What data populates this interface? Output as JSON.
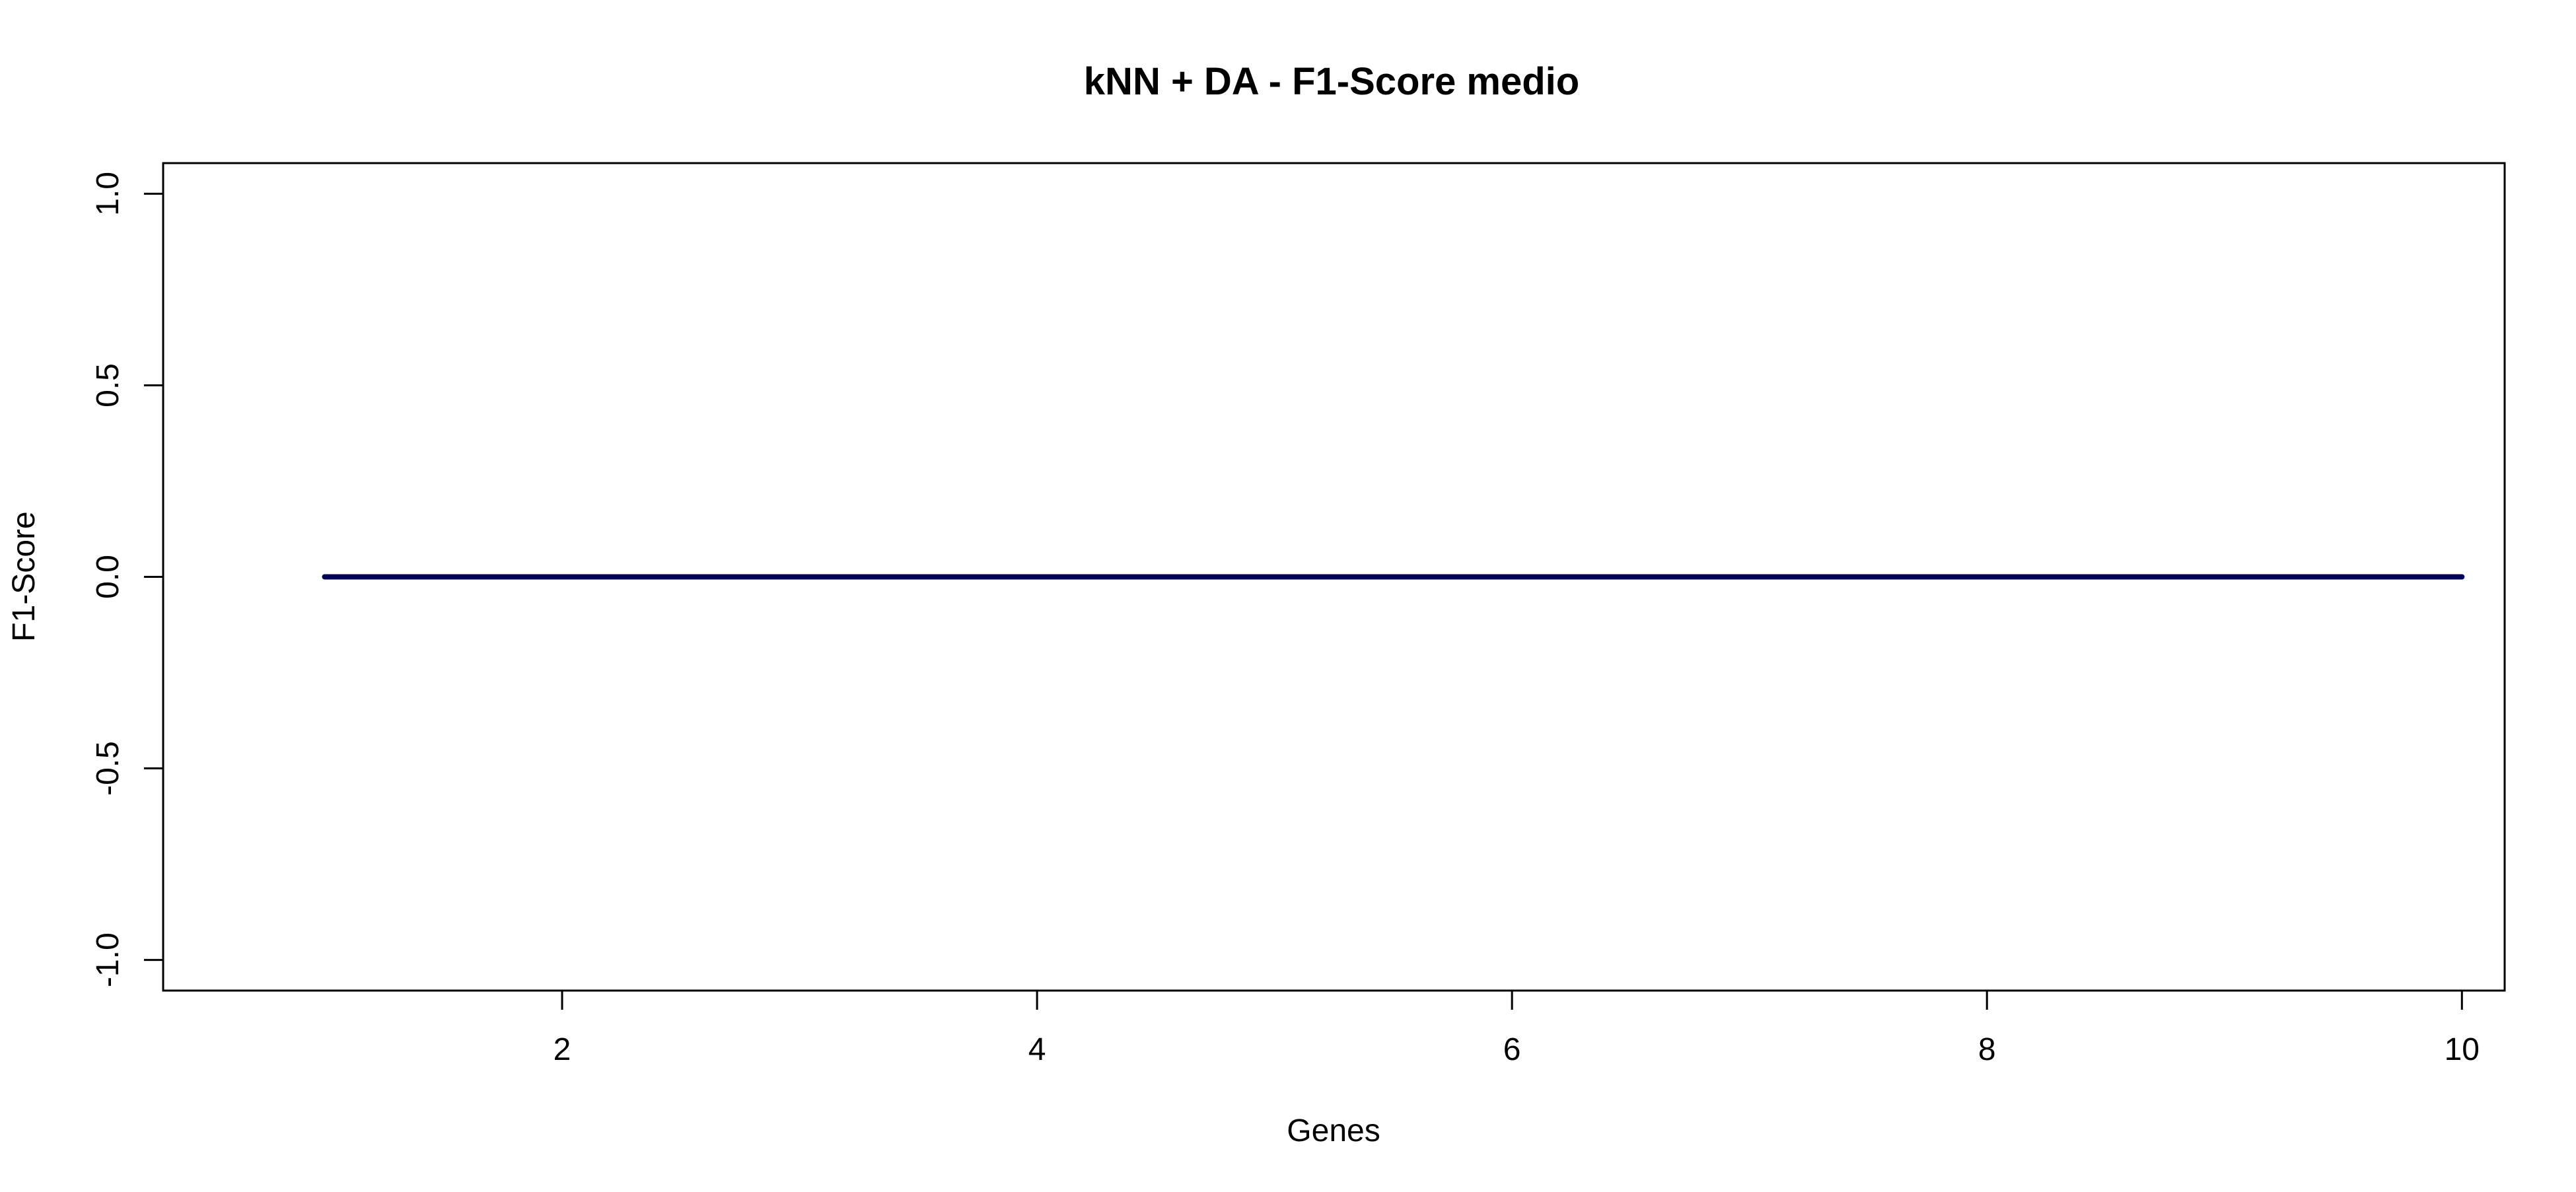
{
  "chart_data": {
    "type": "line",
    "title": "kNN + DA - F1-Score medio",
    "xlabel": "Genes",
    "ylabel": "F1-Score",
    "x": [
      1,
      2,
      3,
      4,
      5,
      6,
      7,
      8,
      9,
      10
    ],
    "series": [
      {
        "values": [
          0,
          0,
          0,
          0,
          0,
          0,
          0,
          0,
          0,
          0
        ],
        "color": "#00005a"
      }
    ],
    "xlim": [
      0.32,
      10.18
    ],
    "ylim": [
      -1.08,
      1.08
    ],
    "x_ticks": [
      2,
      4,
      6,
      8,
      10
    ],
    "x_tick_labels": [
      "2",
      "4",
      "6",
      "8",
      "10"
    ],
    "y_ticks": [
      -1.0,
      -0.5,
      0.0,
      0.5,
      1.0
    ],
    "y_tick_labels": [
      "-1.0",
      "-0.5",
      "0.0",
      "0.5",
      "1.0"
    ],
    "grid": false,
    "legend": "none"
  }
}
